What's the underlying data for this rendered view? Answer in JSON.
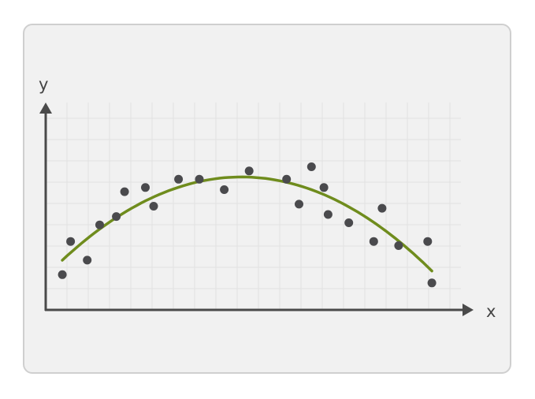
{
  "chart_data": {
    "type": "scatter",
    "title": "",
    "xlabel": "x",
    "ylabel": "y",
    "xlim": [
      0,
      100
    ],
    "ylim": [
      0,
      100
    ],
    "grid": true,
    "points": [
      {
        "x": 4,
        "y": 17
      },
      {
        "x": 6,
        "y": 33
      },
      {
        "x": 10,
        "y": 24
      },
      {
        "x": 13,
        "y": 41
      },
      {
        "x": 17,
        "y": 45
      },
      {
        "x": 19,
        "y": 57
      },
      {
        "x": 24,
        "y": 59
      },
      {
        "x": 26,
        "y": 50
      },
      {
        "x": 32,
        "y": 63
      },
      {
        "x": 37,
        "y": 63
      },
      {
        "x": 43,
        "y": 58
      },
      {
        "x": 49,
        "y": 67
      },
      {
        "x": 58,
        "y": 63
      },
      {
        "x": 61,
        "y": 51
      },
      {
        "x": 64,
        "y": 69
      },
      {
        "x": 67,
        "y": 59
      },
      {
        "x": 68,
        "y": 46
      },
      {
        "x": 73,
        "y": 42
      },
      {
        "x": 79,
        "y": 33
      },
      {
        "x": 81,
        "y": 49
      },
      {
        "x": 85,
        "y": 31
      },
      {
        "x": 92,
        "y": 33
      },
      {
        "x": 93,
        "y": 13
      }
    ],
    "fit": {
      "type": "quadratic",
      "x_range": [
        4,
        93
      ]
    },
    "colors": {
      "points": "#4a4a4d",
      "fit_line": "#6f8c1d",
      "axes": "#4a4a4a",
      "grid": "#e1e1e1",
      "background": "#f1f1f1"
    }
  }
}
